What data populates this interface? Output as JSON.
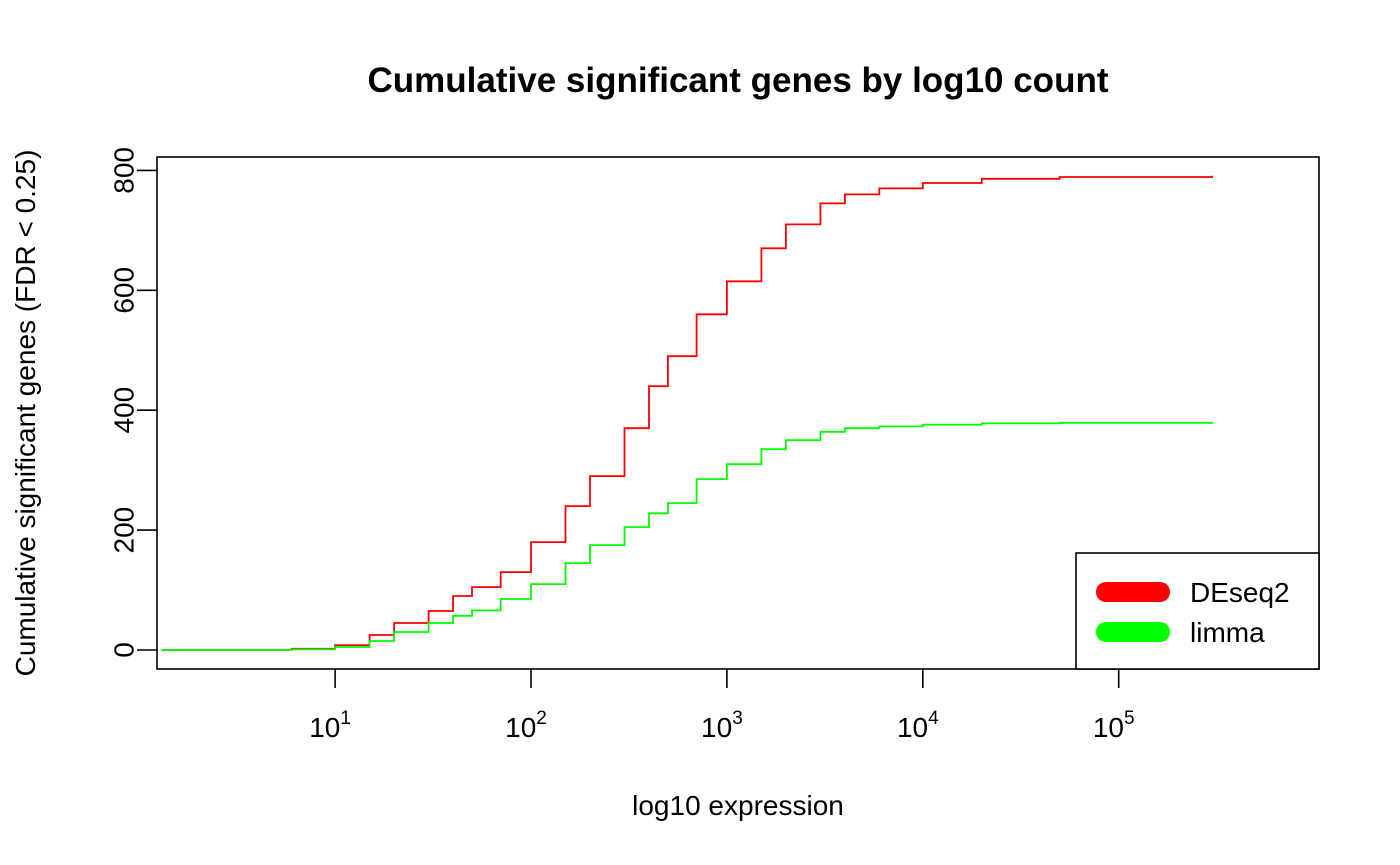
{
  "chart_data": {
    "type": "line",
    "title": "Cumulative significant genes by log10 count",
    "xlabel": "log10 expression",
    "ylabel": "Cumulative significant genes (FDR < 0.25)",
    "x_scale": "log10",
    "xlim": [
      1.3,
      300000
    ],
    "ylim": [
      0,
      800
    ],
    "x_ticks": [
      {
        "base": "10",
        "exp": "1",
        "value": 10
      },
      {
        "base": "10",
        "exp": "2",
        "value": 100
      },
      {
        "base": "10",
        "exp": "3",
        "value": 1000
      },
      {
        "base": "10",
        "exp": "4",
        "value": 10000
      },
      {
        "base": "10",
        "exp": "5",
        "value": 100000
      }
    ],
    "y_ticks": [
      "0",
      "200",
      "400",
      "600",
      "800"
    ],
    "grid": false,
    "legend_position": "bottom-right",
    "series": [
      {
        "name": "DEseq2",
        "color": "#ff0000",
        "points": [
          [
            1.3,
            0
          ],
          [
            4.5,
            0
          ],
          [
            6,
            2
          ],
          [
            10,
            8
          ],
          [
            15,
            25
          ],
          [
            20,
            45
          ],
          [
            30,
            65
          ],
          [
            40,
            90
          ],
          [
            50,
            105
          ],
          [
            70,
            130
          ],
          [
            100,
            180
          ],
          [
            150,
            240
          ],
          [
            200,
            290
          ],
          [
            300,
            370
          ],
          [
            400,
            440
          ],
          [
            500,
            490
          ],
          [
            700,
            560
          ],
          [
            1000,
            615
          ],
          [
            1500,
            670
          ],
          [
            2000,
            710
          ],
          [
            3000,
            745
          ],
          [
            4000,
            760
          ],
          [
            6000,
            770
          ],
          [
            10000,
            779
          ],
          [
            20000,
            786
          ],
          [
            50000,
            789
          ],
          [
            300000,
            791
          ]
        ]
      },
      {
        "name": "limma",
        "color": "#00ff00",
        "points": [
          [
            1.3,
            0
          ],
          [
            4.5,
            0
          ],
          [
            6,
            1
          ],
          [
            10,
            5
          ],
          [
            15,
            15
          ],
          [
            20,
            30
          ],
          [
            30,
            45
          ],
          [
            40,
            57
          ],
          [
            50,
            66
          ],
          [
            70,
            85
          ],
          [
            100,
            110
          ],
          [
            150,
            145
          ],
          [
            200,
            175
          ],
          [
            300,
            205
          ],
          [
            400,
            228
          ],
          [
            500,
            245
          ],
          [
            700,
            285
          ],
          [
            1000,
            310
          ],
          [
            1500,
            335
          ],
          [
            2000,
            350
          ],
          [
            3000,
            364
          ],
          [
            4000,
            370
          ],
          [
            6000,
            373
          ],
          [
            10000,
            376
          ],
          [
            20000,
            378
          ],
          [
            50000,
            379
          ],
          [
            300000,
            380
          ]
        ]
      }
    ]
  }
}
